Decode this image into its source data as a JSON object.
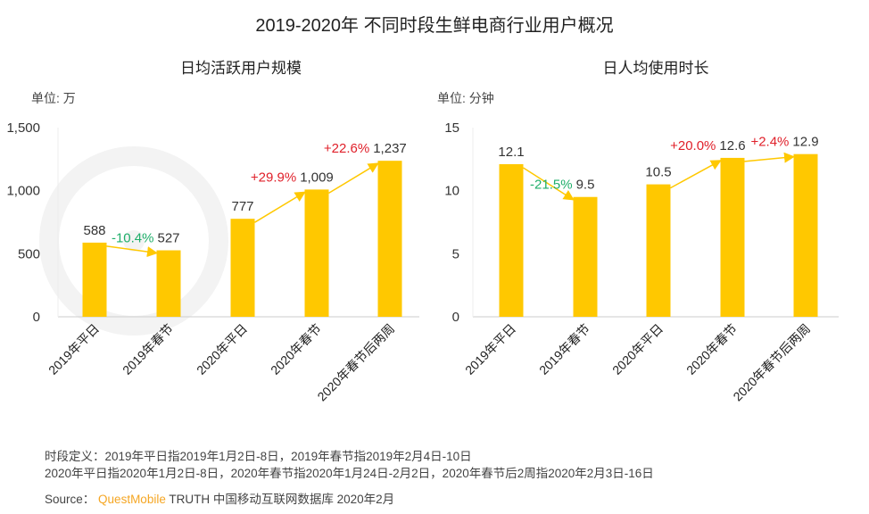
{
  "title": "2019-2020年 不同时段生鲜电商行业用户概况",
  "watermark": "QUESTMOBILE",
  "colors": {
    "bar": "#FFC800",
    "arrow": "#FFC800",
    "up": "#E0202A",
    "down": "#1FAE6A",
    "brand": "#F5A623"
  },
  "chart_data": [
    {
      "type": "bar",
      "title": "日均活跃用户规模",
      "unit_label": "单位: 万",
      "categories": [
        "2019年平日",
        "2019年春节",
        "2020年平日",
        "2020年春节",
        "2020年春节后两周"
      ],
      "values": [
        588,
        527,
        777,
        1009,
        1237
      ],
      "value_labels": [
        "588",
        "527",
        "777",
        "1,009",
        "1,237"
      ],
      "yticks": [
        "0",
        "500",
        "1,000",
        "1,500"
      ],
      "ytick_values": [
        0,
        500,
        1000,
        1500
      ],
      "ylim": [
        0,
        1500
      ],
      "changes": [
        {
          "from": 0,
          "to": 1,
          "label": "-10.4%",
          "dir": "down"
        },
        {
          "from": 2,
          "to": 3,
          "label": "+29.9%",
          "dir": "up"
        },
        {
          "from": 3,
          "to": 4,
          "label": "+22.6%",
          "dir": "up"
        }
      ]
    },
    {
      "type": "bar",
      "title": "日人均使用时长",
      "unit_label": "单位: 分钟",
      "categories": [
        "2019年平日",
        "2019年春节",
        "2020年平日",
        "2020年春节",
        "2020年春节后两周"
      ],
      "values": [
        12.1,
        9.5,
        10.5,
        12.6,
        12.9
      ],
      "value_labels": [
        "12.1",
        "9.5",
        "10.5",
        "12.6",
        "12.9"
      ],
      "yticks": [
        "0",
        "5",
        "10",
        "15"
      ],
      "ytick_values": [
        0,
        5,
        10,
        15
      ],
      "ylim": [
        0,
        15
      ],
      "changes": [
        {
          "from": 0,
          "to": 1,
          "label": "-21.5%",
          "dir": "down"
        },
        {
          "from": 2,
          "to": 3,
          "label": "+20.0%",
          "dir": "up"
        },
        {
          "from": 3,
          "to": 4,
          "label": "+2.4%",
          "dir": "up"
        }
      ]
    }
  ],
  "notes": {
    "line1": "时段定义：2019年平日指2019年1月2日-8日，2019年春节指2019年2月4日-10日",
    "line2": "2020年平日指2020年1月2日-8日，2020年春节指2020年1月24日-2月2日，2020年春节后2周指2020年2月3日-16日",
    "source_label": "Source：",
    "source_brand": "QuestMobile",
    "source_rest": "TRUTH 中国移动互联网数据库 2020年2月"
  }
}
